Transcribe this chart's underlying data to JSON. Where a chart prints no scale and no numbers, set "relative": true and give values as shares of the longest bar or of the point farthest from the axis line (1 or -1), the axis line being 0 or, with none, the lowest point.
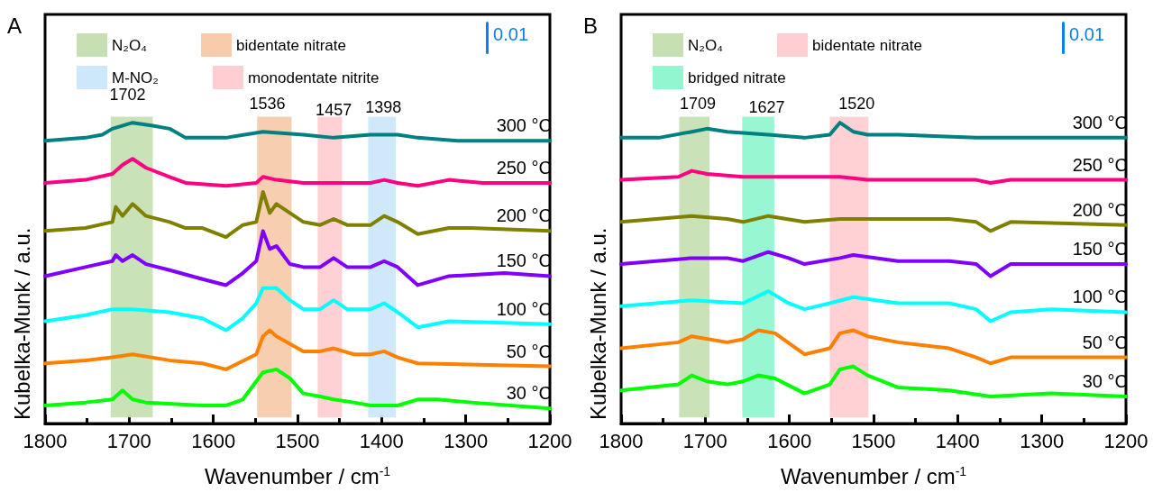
{
  "chart_data": [
    {
      "type": "line",
      "title": "A",
      "xlabel": "Wavenumber / cm$^{-1}$",
      "ylabel": "Kubelka-Munk / a.u.",
      "relative": true,
      "marker": "none",
      "legend": "top",
      "xlim": [
        1800,
        1200
      ],
      "xticks": [
        1800,
        1700,
        1600,
        1500,
        1400,
        1300,
        1200
      ],
      "series": [
        {
          "name": "300 °C",
          "color": "#008080",
          "x": [
            1800,
            1752,
            1732,
            1720,
            1696,
            1672,
            1652,
            1633,
            1585,
            1541,
            1493,
            1457,
            1413,
            1381,
            1357,
            1310,
            1200
          ],
          "values": [
            0.94,
            0.95,
            0.96,
            0.98,
            1.0,
            0.99,
            0.98,
            0.95,
            0.95,
            0.97,
            0.96,
            0.95,
            0.96,
            0.96,
            0.95,
            0.94,
            0.94
          ]
        },
        {
          "name": "250 °C",
          "color": "#ff0080",
          "x": [
            1800,
            1752,
            1720,
            1708,
            1696,
            1680,
            1652,
            1633,
            1585,
            1549,
            1541,
            1525,
            1493,
            1413,
            1397,
            1381,
            1357,
            1320,
            1280,
            1200
          ],
          "values": [
            0.8,
            0.81,
            0.83,
            0.86,
            0.88,
            0.85,
            0.82,
            0.8,
            0.79,
            0.8,
            0.82,
            0.81,
            0.8,
            0.8,
            0.81,
            0.8,
            0.79,
            0.81,
            0.8,
            0.8
          ]
        },
        {
          "name": "200 °C",
          "color": "#808000",
          "x": [
            1800,
            1752,
            1720,
            1716,
            1708,
            1696,
            1680,
            1652,
            1633,
            1613,
            1585,
            1565,
            1549,
            1541,
            1533,
            1525,
            1509,
            1493,
            1473,
            1457,
            1441,
            1413,
            1397,
            1381,
            1357,
            1320,
            1294,
            1200
          ],
          "values": [
            0.64,
            0.65,
            0.67,
            0.72,
            0.69,
            0.73,
            0.69,
            0.67,
            0.65,
            0.65,
            0.62,
            0.66,
            0.67,
            0.77,
            0.7,
            0.73,
            0.7,
            0.67,
            0.66,
            0.68,
            0.66,
            0.66,
            0.69,
            0.67,
            0.63,
            0.65,
            0.65,
            0.64
          ]
        },
        {
          "name": "150 °C",
          "color": "#8000ff",
          "x": [
            1800,
            1752,
            1720,
            1716,
            1708,
            1696,
            1680,
            1652,
            1613,
            1585,
            1565,
            1549,
            1541,
            1533,
            1525,
            1509,
            1493,
            1473,
            1457,
            1441,
            1413,
            1397,
            1381,
            1357,
            1320,
            1254,
            1200
          ],
          "values": [
            0.49,
            0.52,
            0.54,
            0.56,
            0.54,
            0.56,
            0.53,
            0.51,
            0.48,
            0.46,
            0.5,
            0.54,
            0.64,
            0.58,
            0.59,
            0.53,
            0.52,
            0.52,
            0.55,
            0.52,
            0.52,
            0.54,
            0.52,
            0.46,
            0.49,
            0.5,
            0.49
          ]
        },
        {
          "name": "100 °C",
          "color": "#00ffff",
          "x": [
            1800,
            1752,
            1720,
            1696,
            1652,
            1613,
            1585,
            1565,
            1549,
            1541,
            1525,
            1509,
            1493,
            1473,
            1457,
            1441,
            1413,
            1397,
            1381,
            1357,
            1320,
            1200
          ],
          "values": [
            0.34,
            0.36,
            0.38,
            0.38,
            0.37,
            0.35,
            0.31,
            0.35,
            0.4,
            0.45,
            0.45,
            0.41,
            0.38,
            0.38,
            0.41,
            0.38,
            0.38,
            0.4,
            0.37,
            0.32,
            0.34,
            0.33
          ]
        },
        {
          "name": "50 °C",
          "color": "#ff8000",
          "x": [
            1800,
            1752,
            1720,
            1696,
            1652,
            1613,
            1585,
            1549,
            1541,
            1533,
            1525,
            1493,
            1473,
            1457,
            1433,
            1413,
            1397,
            1381,
            1357,
            1200
          ],
          "values": [
            0.2,
            0.21,
            0.22,
            0.23,
            0.21,
            0.2,
            0.18,
            0.23,
            0.29,
            0.31,
            0.29,
            0.24,
            0.24,
            0.25,
            0.23,
            0.23,
            0.24,
            0.22,
            0.2,
            0.19
          ]
        },
        {
          "name": "30 °C",
          "color": "#00ff00",
          "x": [
            1800,
            1752,
            1720,
            1708,
            1696,
            1680,
            1613,
            1585,
            1565,
            1549,
            1541,
            1525,
            1509,
            1493,
            1473,
            1457,
            1433,
            1413,
            1381,
            1357,
            1334,
            1294,
            1200
          ],
          "values": [
            0.06,
            0.07,
            0.08,
            0.11,
            0.08,
            0.07,
            0.06,
            0.06,
            0.08,
            0.14,
            0.17,
            0.18,
            0.15,
            0.1,
            0.09,
            0.08,
            0.07,
            0.06,
            0.06,
            0.08,
            0.08,
            0.07,
            0.05
          ]
        }
      ],
      "bands": [
        {
          "axis": "x",
          "from": 1722,
          "to": 1672,
          "label": "N₂O₄",
          "color": "#c6e0b4"
        },
        {
          "axis": "x",
          "from": 1548,
          "to": 1507,
          "label": "bidentate nitrate",
          "color": "#f8cbad"
        },
        {
          "axis": "x",
          "from": 1416,
          "to": 1383,
          "label": "M-NO₂",
          "color": "#cce8fa"
        },
        {
          "axis": "x",
          "from": 1476,
          "to": 1447,
          "label": "monodentate nitrite",
          "color": "#ffcdd2"
        }
      ],
      "annotations": [
        {
          "text": "1702",
          "x": 1702,
          "y": 1.0
        },
        {
          "text": "1536",
          "x": 1536,
          "y": 0.97
        },
        {
          "text": "1457",
          "x": 1457,
          "y": 0.95
        },
        {
          "text": "1398",
          "x": 1398,
          "y": 0.96
        },
        "0.01"
      ]
    },
    {
      "type": "line",
      "title": "B",
      "xlabel": "Wavenumber / cm$^{-1}$",
      "ylabel": "Kubelka-Munk / a.u.",
      "relative": true,
      "marker": "none",
      "legend": "top",
      "xlim": [
        1800,
        1200
      ],
      "xticks": [
        1800,
        1700,
        1600,
        1500,
        1400,
        1300,
        1200
      ],
      "series": [
        {
          "name": "300 °C",
          "color": "#008080",
          "x": [
            1800,
            1755,
            1716,
            1698,
            1674,
            1625,
            1582,
            1552,
            1540,
            1524,
            1507,
            1471,
            1378,
            1200
          ],
          "values": [
            0.95,
            0.95,
            0.97,
            0.98,
            0.97,
            0.96,
            0.95,
            0.96,
            1.0,
            0.97,
            0.96,
            0.96,
            0.95,
            0.95
          ]
        },
        {
          "name": "250 °C",
          "color": "#ff0080",
          "x": [
            1800,
            1732,
            1716,
            1698,
            1655,
            1617,
            1540,
            1507,
            1378,
            1361,
            1337,
            1200
          ],
          "values": [
            0.81,
            0.82,
            0.84,
            0.83,
            0.82,
            0.82,
            0.82,
            0.81,
            0.81,
            0.8,
            0.81,
            0.81
          ]
        },
        {
          "name": "200 °C",
          "color": "#808000",
          "x": [
            1800,
            1716,
            1674,
            1655,
            1625,
            1582,
            1540,
            1410,
            1378,
            1361,
            1337,
            1200
          ],
          "values": [
            0.67,
            0.69,
            0.68,
            0.67,
            0.69,
            0.67,
            0.68,
            0.68,
            0.67,
            0.64,
            0.67,
            0.66
          ]
        },
        {
          "name": "150 °C",
          "color": "#8000ff",
          "x": [
            1800,
            1716,
            1674,
            1655,
            1625,
            1601,
            1582,
            1540,
            1524,
            1471,
            1410,
            1378,
            1361,
            1337,
            1200
          ],
          "values": [
            0.53,
            0.55,
            0.55,
            0.54,
            0.57,
            0.55,
            0.53,
            0.55,
            0.56,
            0.54,
            0.54,
            0.53,
            0.49,
            0.53,
            0.53
          ]
        },
        {
          "name": "100 °C",
          "color": "#00ffff",
          "x": [
            1800,
            1716,
            1655,
            1625,
            1601,
            1582,
            1552,
            1524,
            1471,
            1410,
            1378,
            1361,
            1337,
            1289,
            1200
          ],
          "values": [
            0.39,
            0.41,
            0.4,
            0.44,
            0.4,
            0.38,
            0.4,
            0.42,
            0.4,
            0.4,
            0.38,
            0.34,
            0.37,
            0.38,
            0.37
          ]
        },
        {
          "name": "50 °C",
          "color": "#ff8000",
          "x": [
            1800,
            1732,
            1716,
            1674,
            1655,
            1637,
            1617,
            1582,
            1552,
            1540,
            1524,
            1507,
            1471,
            1410,
            1378,
            1361,
            1337,
            1289,
            1200
          ],
          "values": [
            0.25,
            0.27,
            0.29,
            0.27,
            0.28,
            0.31,
            0.3,
            0.23,
            0.25,
            0.3,
            0.31,
            0.29,
            0.27,
            0.25,
            0.22,
            0.2,
            0.22,
            0.22,
            0.22
          ]
        },
        {
          "name": "30 °C",
          "color": "#00ff00",
          "x": [
            1800,
            1732,
            1716,
            1698,
            1674,
            1655,
            1637,
            1617,
            1582,
            1552,
            1540,
            1524,
            1507,
            1471,
            1410,
            1361,
            1289,
            1200
          ],
          "values": [
            0.11,
            0.13,
            0.16,
            0.14,
            0.13,
            0.14,
            0.16,
            0.15,
            0.1,
            0.13,
            0.18,
            0.19,
            0.16,
            0.12,
            0.11,
            0.09,
            0.1,
            0.09
          ]
        }
      ],
      "bands": [
        {
          "axis": "x",
          "from": 1731,
          "to": 1695,
          "label": "N₂O₄",
          "color": "#c6e0b4"
        },
        {
          "axis": "x",
          "from": 1552,
          "to": 1506,
          "label": "bidentate nitrate",
          "color": "#ffcdd2"
        },
        {
          "axis": "x",
          "from": 1656,
          "to": 1618,
          "label": "bridged nitrate",
          "color": "#92f7d0"
        }
      ],
      "annotations": [
        {
          "text": "1709",
          "x": 1709,
          "y": 0.97
        },
        {
          "text": "1627",
          "x": 1627,
          "y": 0.96
        },
        {
          "text": "1520",
          "x": 1520,
          "y": 0.97
        },
        "0.01"
      ]
    }
  ]
}
